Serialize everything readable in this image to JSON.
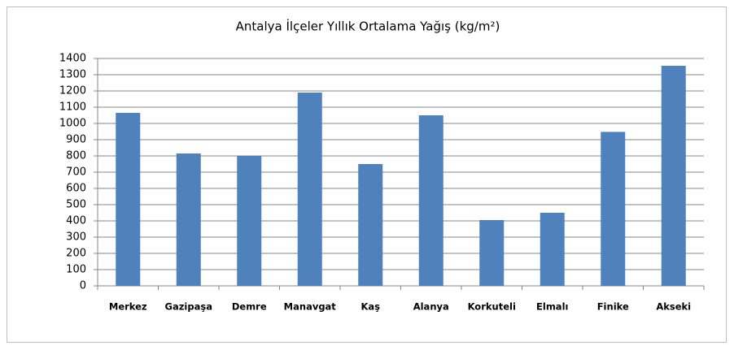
{
  "chart_data": {
    "type": "bar",
    "title": "Antalya İlçeler Yıllık Ortalama Yağış (kg/m²)",
    "categories": [
      "Merkez",
      "Gazipaşa",
      "Demre",
      "Manavgat",
      "Kaş",
      "Alanya",
      "Korkuteli",
      "Elmalı",
      "Finike",
      "Akseki"
    ],
    "values": [
      1065,
      815,
      800,
      1190,
      750,
      1050,
      405,
      450,
      948,
      1355
    ],
    "color": "#4f81bd",
    "ylim": [
      0,
      1400
    ],
    "yticks": [
      0,
      100,
      200,
      300,
      400,
      500,
      600,
      700,
      800,
      900,
      1000,
      1100,
      1200,
      1300,
      1400
    ],
    "grid": true
  }
}
